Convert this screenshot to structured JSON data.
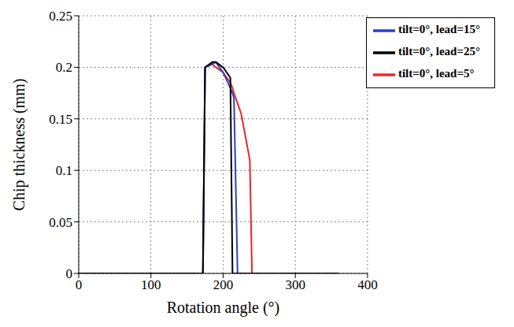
{
  "chart_data": {
    "type": "line",
    "x_label": "Rotation angle (°)",
    "y_label": "Chip thickness (mm)",
    "x": [
      0,
      172,
      175,
      185,
      190,
      200,
      210,
      213,
      215,
      220,
      225,
      237,
      240,
      360
    ],
    "series": [
      {
        "name": "tilt=0°, lead=5°",
        "color": "#e8272a",
        "values": [
          0,
          0,
          0.2,
          0.203,
          0.2,
          0.195,
          0.185,
          0.18,
          0.175,
          0.165,
          0.155,
          0.11,
          0,
          0
        ]
      },
      {
        "name": "tilt=0°, lead=15°",
        "color": "#2b3fcf",
        "values": [
          0,
          0,
          0.2,
          0.203,
          0.205,
          0.195,
          0.18,
          0.175,
          0.17,
          0,
          0,
          0,
          0,
          0
        ]
      },
      {
        "name": "tilt=0°, lead=25°",
        "color": "#000000",
        "values": [
          0,
          0,
          0.2,
          0.205,
          0.205,
          0.2,
          0.19,
          0,
          0,
          0,
          0,
          0,
          0,
          0
        ]
      }
    ],
    "xlim": [
      0,
      400
    ],
    "ylim": [
      0,
      0.25
    ],
    "xticks": [
      0,
      100,
      200,
      300,
      400
    ],
    "yticks": [
      0,
      0.05,
      0.1,
      0.15,
      0.2,
      0.25
    ],
    "grid": true,
    "legend": "upper right"
  }
}
